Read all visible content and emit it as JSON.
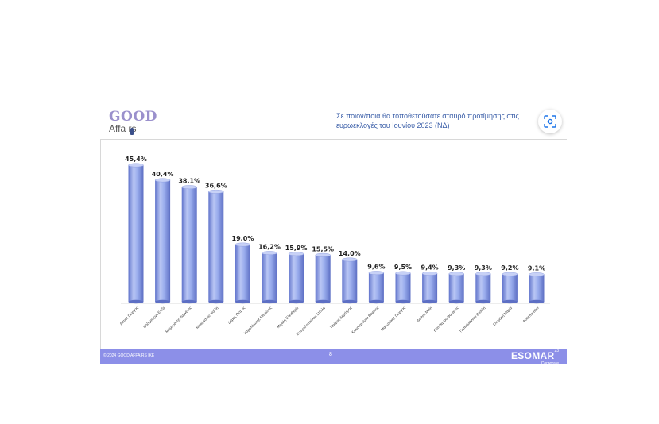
{
  "logo": {
    "good": "GOOD",
    "affairs": "Affa rs"
  },
  "question": {
    "line1": "Σε ποιον/ποια θα τοποθετούσατε σταυρό προτίμησης στις",
    "line2": "ευρωεκλογές του Ιουνίου 2023  (ΝΔ)"
  },
  "footer": {
    "copyright": "© 2024 GOOD AFFAIRS ΙΚΕ",
    "page": "8",
    "esomar": "ESOMAR",
    "esomar_sup": "23",
    "esomar_sub": "Corporate"
  },
  "colors": {
    "bar_light": "#c3cdf5",
    "bar_mid": "#8fa2e6",
    "bar_dark": "#5d6fc4",
    "footer": "#8c8fe8"
  },
  "icons": {
    "lens": "lens-icon"
  },
  "chart_data": {
    "type": "bar",
    "title": "",
    "xlabel": "",
    "ylabel": "",
    "ylim": [
      0,
      50
    ],
    "grid": false,
    "categories": [
      "Αυτιάς Γιώργος",
      "Βόζεμπεργκ Ελίζα",
      "Μεϊμαράκης Βαγγέλης",
      "Μπαλάσκας Φαίδη",
      "Δήμας Πέτρος",
      "Καραπλιώτης Μανώλης",
      "Μιχάλη Ελευθερία",
      "Ευαγγελοπούλου Στέλλα",
      "Τσιάρας Δημήτρης",
      "Κωνσταντίνου Βασίλης",
      "Μανωλάκης Γιώργος",
      "Δούνια Μαίη",
      "Ελευθερίου Θανάσης",
      "Παπαϊωάννου Βασίλη",
      "Σπυράκη Μαρία",
      "Φιλίππα Βίκυ"
    ],
    "values": [
      45.4,
      40.4,
      38.1,
      36.6,
      19.0,
      16.2,
      15.9,
      15.5,
      14.0,
      9.6,
      9.5,
      9.4,
      9.3,
      9.3,
      9.2,
      9.1
    ],
    "value_labels": [
      "45,4%",
      "40,4%",
      "38,1%",
      "36,6%",
      "19,0%",
      "16,2%",
      "15,9%",
      "15,5%",
      "14,0%",
      "9,6%",
      "9,5%",
      "9,4%",
      "9,3%",
      "9,3%",
      "9,2%",
      "9,1%"
    ]
  }
}
